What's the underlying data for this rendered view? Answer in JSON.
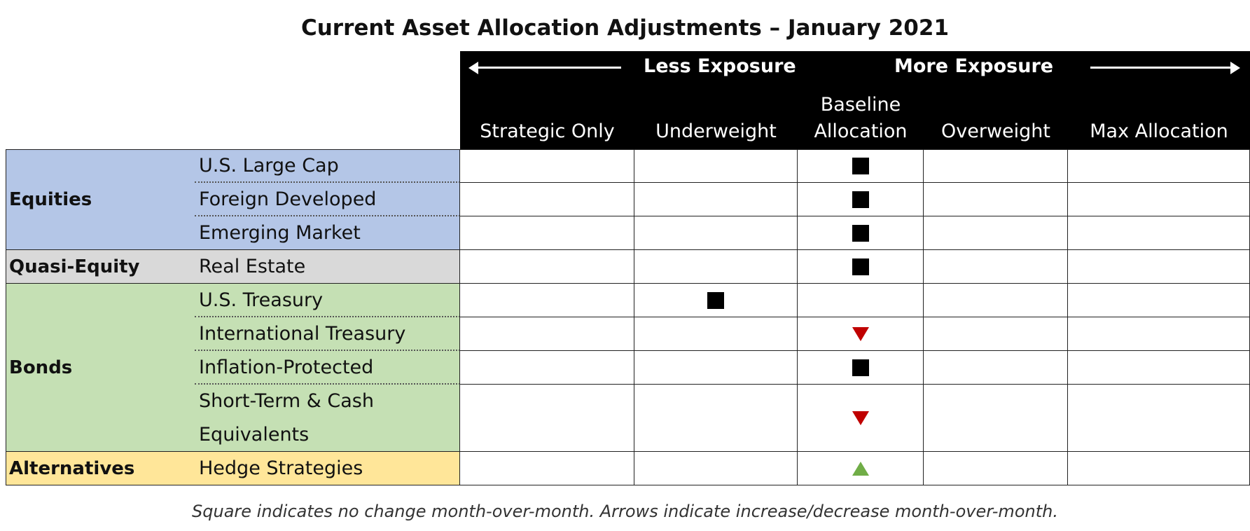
{
  "title": "Current Asset Allocation Adjustments – January 2021",
  "header": {
    "less_exposure": "Less Exposure",
    "more_exposure": "More Exposure",
    "columns": [
      {
        "line1": "",
        "line2": "Strategic Only"
      },
      {
        "line1": "",
        "line2": "Underweight"
      },
      {
        "line1": "Baseline",
        "line2": "Allocation"
      },
      {
        "line1": "",
        "line2": "Overweight"
      },
      {
        "line1": "",
        "line2": "Max Allocation"
      }
    ]
  },
  "categories": {
    "equities": "Equities",
    "quasi_equity": "Quasi-Equity",
    "bonds": "Bonds",
    "alternatives": "Alternatives"
  },
  "rows": [
    {
      "label": "U.S. Large Cap",
      "position": "Baseline Allocation",
      "marker": "square"
    },
    {
      "label": "Foreign Developed",
      "position": "Baseline Allocation",
      "marker": "square"
    },
    {
      "label": "Emerging Market",
      "position": "Baseline Allocation",
      "marker": "square"
    },
    {
      "label": "Real Estate",
      "position": "Baseline Allocation",
      "marker": "square"
    },
    {
      "label": "U.S. Treasury",
      "position": "Underweight",
      "marker": "square"
    },
    {
      "label": "International Treasury",
      "position": "Baseline Allocation",
      "marker": "down-arrow"
    },
    {
      "label": "Inflation-Protected",
      "position": "Baseline Allocation",
      "marker": "square"
    },
    {
      "label_line1": "Short-Term & Cash",
      "label_line2": "Equivalents",
      "position": "Baseline Allocation",
      "marker": "down-arrow"
    },
    {
      "label": "Hedge Strategies",
      "position": "Baseline Allocation",
      "marker": "up-arrow"
    }
  ],
  "colors": {
    "equities": "#b4c6e7",
    "quasi_equity": "#d9d9d9",
    "bonds": "#c5e0b4",
    "alternatives": "#ffe699",
    "decrease_arrow": "#c00000",
    "increase_arrow": "#70ad47"
  },
  "footer": "Square indicates no change month-over-month. Arrows indicate increase/decrease month-over-month."
}
